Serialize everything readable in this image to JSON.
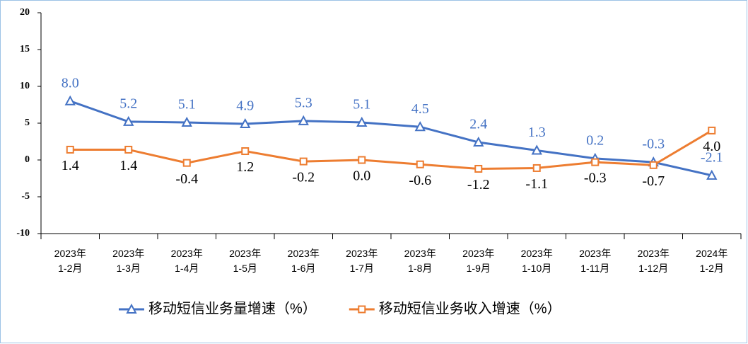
{
  "chart_data": {
    "type": "line",
    "categories": [
      "2023年\n1-2月",
      "2023年\n1-3月",
      "2023年\n1-4月",
      "2023年\n1-5月",
      "2023年\n1-6月",
      "2023年\n1-7月",
      "2023年\n1-8月",
      "2023年\n1-9月",
      "2023年\n1-10月",
      "2023年\n1-11月",
      "2023年\n1-12月",
      "2024年\n1-2月"
    ],
    "series": [
      {
        "name": "移动短信业务量增速（%）",
        "color": "#4472c4",
        "marker": "triangle",
        "values": [
          8.0,
          5.2,
          5.1,
          4.9,
          5.3,
          5.1,
          4.5,
          2.4,
          1.3,
          0.2,
          -0.3,
          -2.1
        ],
        "value_labels": [
          "8.0",
          "5.2",
          "5.1",
          "4.9",
          "5.3",
          "5.1",
          "4.5",
          "2.4",
          "1.3",
          "0.2",
          "-0.3",
          "-2.1"
        ]
      },
      {
        "name": "移动短信业务收入增速（%）",
        "color": "#ed7d31",
        "marker": "square",
        "values": [
          1.4,
          1.4,
          -0.4,
          1.2,
          -0.2,
          0.0,
          -0.6,
          -1.2,
          -1.1,
          -0.3,
          -0.7,
          4.0
        ],
        "value_labels": [
          "1.4",
          "1.4",
          "-0.4",
          "1.2",
          "-0.2",
          "0.0",
          "-0.6",
          "-1.2",
          "-1.1",
          "-0.3",
          "-0.7",
          "4.0"
        ]
      }
    ],
    "ylim": [
      -10,
      20
    ],
    "yticks": [
      -10,
      -5,
      0,
      5,
      10,
      15,
      20
    ],
    "legend": "bottom"
  }
}
